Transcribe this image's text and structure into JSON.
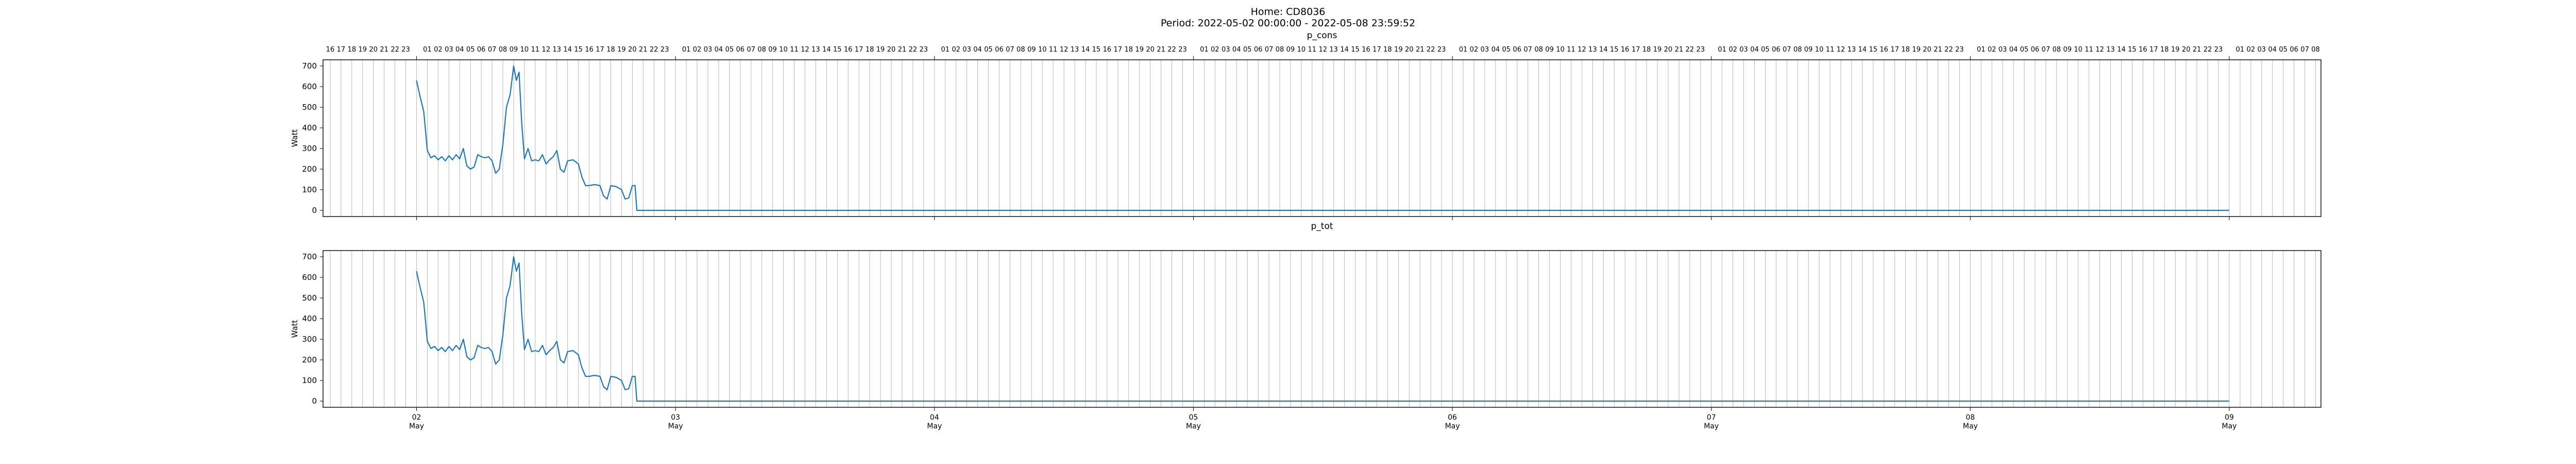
{
  "figure": {
    "title_line1": "Home: CD8036",
    "title_line2": "Period: 2022-05-02 00:00:00 - 2022-05-08 23:59:52"
  },
  "chart_data": [
    {
      "type": "line",
      "title": "p_cons",
      "xlabel": "",
      "ylabel": "Watt",
      "xlim": [
        "2022-05-01 15:20",
        "2022-05-09 08:30"
      ],
      "ylim": [
        -30,
        730
      ],
      "yticks": [
        0,
        100,
        200,
        300,
        400,
        500,
        600,
        700
      ],
      "grid": "vertical hourly lines",
      "x_major_ticks": [
        {
          "date": "2022-05-02 00:00",
          "day": "02",
          "month": "May"
        },
        {
          "date": "2022-05-03 00:00",
          "day": "03",
          "month": "May"
        },
        {
          "date": "2022-05-04 00:00",
          "day": "04",
          "month": "May"
        },
        {
          "date": "2022-05-05 00:00",
          "day": "05",
          "month": "May"
        },
        {
          "date": "2022-05-06 00:00",
          "day": "06",
          "month": "May"
        },
        {
          "date": "2022-05-07 00:00",
          "day": "07",
          "month": "May"
        },
        {
          "date": "2022-05-08 00:00",
          "day": "08",
          "month": "May"
        },
        {
          "date": "2022-05-09 00:00",
          "day": "09",
          "month": "May"
        }
      ],
      "top_hour_labels": "hours 16 to 23 on 2022-05-01, 01 to 23 each day 2022-05-02 to 2022-05-08, 01 to 08 on 2022-05-09",
      "series": [
        {
          "color": "#1f77b4",
          "points": [
            [
              "2022-05-02 00:00",
              630
            ],
            [
              "2022-05-02 00:20",
              550
            ],
            [
              "2022-05-02 00:40",
              480
            ],
            [
              "2022-05-02 01:00",
              290
            ],
            [
              "2022-05-02 01:20",
              255
            ],
            [
              "2022-05-02 01:40",
              265
            ],
            [
              "2022-05-02 02:00",
              245
            ],
            [
              "2022-05-02 02:20",
              260
            ],
            [
              "2022-05-02 02:40",
              240
            ],
            [
              "2022-05-02 03:00",
              265
            ],
            [
              "2022-05-02 03:20",
              245
            ],
            [
              "2022-05-02 03:40",
              270
            ],
            [
              "2022-05-02 04:00",
              250
            ],
            [
              "2022-05-02 04:20",
              300
            ],
            [
              "2022-05-02 04:40",
              215
            ],
            [
              "2022-05-02 05:00",
              200
            ],
            [
              "2022-05-02 05:20",
              210
            ],
            [
              "2022-05-02 05:40",
              270
            ],
            [
              "2022-05-02 06:00",
              260
            ],
            [
              "2022-05-02 06:20",
              255
            ],
            [
              "2022-05-02 06:40",
              260
            ],
            [
              "2022-05-02 07:00",
              240
            ],
            [
              "2022-05-02 07:20",
              180
            ],
            [
              "2022-05-02 07:40",
              200
            ],
            [
              "2022-05-02 08:00",
              320
            ],
            [
              "2022-05-02 08:20",
              500
            ],
            [
              "2022-05-02 08:40",
              560
            ],
            [
              "2022-05-02 09:00",
              700
            ],
            [
              "2022-05-02 09:15",
              630
            ],
            [
              "2022-05-02 09:30",
              670
            ],
            [
              "2022-05-02 09:45",
              420
            ],
            [
              "2022-05-02 10:00",
              250
            ],
            [
              "2022-05-02 10:20",
              300
            ],
            [
              "2022-05-02 10:40",
              240
            ],
            [
              "2022-05-02 11:00",
              245
            ],
            [
              "2022-05-02 11:20",
              240
            ],
            [
              "2022-05-02 11:40",
              270
            ],
            [
              "2022-05-02 12:00",
              225
            ],
            [
              "2022-05-02 12:20",
              245
            ],
            [
              "2022-05-02 12:40",
              260
            ],
            [
              "2022-05-02 13:00",
              290
            ],
            [
              "2022-05-02 13:20",
              200
            ],
            [
              "2022-05-02 13:40",
              185
            ],
            [
              "2022-05-02 14:00",
              240
            ],
            [
              "2022-05-02 14:30",
              245
            ],
            [
              "2022-05-02 15:00",
              225
            ],
            [
              "2022-05-02 15:20",
              160
            ],
            [
              "2022-05-02 15:40",
              120
            ],
            [
              "2022-05-02 16:00",
              120
            ],
            [
              "2022-05-02 16:30",
              125
            ],
            [
              "2022-05-02 17:00",
              120
            ],
            [
              "2022-05-02 17:20",
              70
            ],
            [
              "2022-05-02 17:40",
              55
            ],
            [
              "2022-05-02 18:00",
              120
            ],
            [
              "2022-05-02 18:30",
              115
            ],
            [
              "2022-05-02 19:00",
              100
            ],
            [
              "2022-05-02 19:20",
              55
            ],
            [
              "2022-05-02 19:40",
              60
            ],
            [
              "2022-05-02 20:00",
              120
            ],
            [
              "2022-05-02 20:15",
              120
            ],
            [
              "2022-05-02 20:25",
              0
            ],
            [
              "2022-05-08 23:59",
              0
            ]
          ]
        }
      ]
    },
    {
      "type": "line",
      "title": "p_tot",
      "xlabel": "",
      "ylabel": "Watt",
      "xlim": [
        "2022-05-01 15:20",
        "2022-05-09 08:30"
      ],
      "ylim": [
        -30,
        730
      ],
      "yticks": [
        0,
        100,
        200,
        300,
        400,
        500,
        600,
        700
      ],
      "grid": "vertical hourly lines",
      "x_major_ticks": [
        {
          "date": "2022-05-02 00:00",
          "day": "02",
          "month": "May"
        },
        {
          "date": "2022-05-03 00:00",
          "day": "03",
          "month": "May"
        },
        {
          "date": "2022-05-04 00:00",
          "day": "04",
          "month": "May"
        },
        {
          "date": "2022-05-05 00:00",
          "day": "05",
          "month": "May"
        },
        {
          "date": "2022-05-06 00:00",
          "day": "06",
          "month": "May"
        },
        {
          "date": "2022-05-07 00:00",
          "day": "07",
          "month": "May"
        },
        {
          "date": "2022-05-08 00:00",
          "day": "08",
          "month": "May"
        },
        {
          "date": "2022-05-09 00:00",
          "day": "09",
          "month": "May"
        }
      ],
      "series": [
        {
          "color": "#1f77b4",
          "points": [
            [
              "2022-05-02 00:00",
              630
            ],
            [
              "2022-05-02 00:20",
              550
            ],
            [
              "2022-05-02 00:40",
              480
            ],
            [
              "2022-05-02 01:00",
              290
            ],
            [
              "2022-05-02 01:20",
              255
            ],
            [
              "2022-05-02 01:40",
              265
            ],
            [
              "2022-05-02 02:00",
              245
            ],
            [
              "2022-05-02 02:20",
              260
            ],
            [
              "2022-05-02 02:40",
              240
            ],
            [
              "2022-05-02 03:00",
              265
            ],
            [
              "2022-05-02 03:20",
              245
            ],
            [
              "2022-05-02 03:40",
              270
            ],
            [
              "2022-05-02 04:00",
              250
            ],
            [
              "2022-05-02 04:20",
              300
            ],
            [
              "2022-05-02 04:40",
              215
            ],
            [
              "2022-05-02 05:00",
              200
            ],
            [
              "2022-05-02 05:20",
              210
            ],
            [
              "2022-05-02 05:40",
              270
            ],
            [
              "2022-05-02 06:00",
              260
            ],
            [
              "2022-05-02 06:20",
              255
            ],
            [
              "2022-05-02 06:40",
              260
            ],
            [
              "2022-05-02 07:00",
              240
            ],
            [
              "2022-05-02 07:20",
              180
            ],
            [
              "2022-05-02 07:40",
              200
            ],
            [
              "2022-05-02 08:00",
              320
            ],
            [
              "2022-05-02 08:20",
              500
            ],
            [
              "2022-05-02 08:40",
              560
            ],
            [
              "2022-05-02 09:00",
              700
            ],
            [
              "2022-05-02 09:15",
              630
            ],
            [
              "2022-05-02 09:30",
              670
            ],
            [
              "2022-05-02 09:45",
              420
            ],
            [
              "2022-05-02 10:00",
              250
            ],
            [
              "2022-05-02 10:20",
              300
            ],
            [
              "2022-05-02 10:40",
              240
            ],
            [
              "2022-05-02 11:00",
              245
            ],
            [
              "2022-05-02 11:20",
              240
            ],
            [
              "2022-05-02 11:40",
              270
            ],
            [
              "2022-05-02 12:00",
              225
            ],
            [
              "2022-05-02 12:20",
              245
            ],
            [
              "2022-05-02 12:40",
              260
            ],
            [
              "2022-05-02 13:00",
              290
            ],
            [
              "2022-05-02 13:20",
              200
            ],
            [
              "2022-05-02 13:40",
              185
            ],
            [
              "2022-05-02 14:00",
              240
            ],
            [
              "2022-05-02 14:30",
              245
            ],
            [
              "2022-05-02 15:00",
              225
            ],
            [
              "2022-05-02 15:20",
              160
            ],
            [
              "2022-05-02 15:40",
              120
            ],
            [
              "2022-05-02 16:00",
              120
            ],
            [
              "2022-05-02 16:30",
              125
            ],
            [
              "2022-05-02 17:00",
              120
            ],
            [
              "2022-05-02 17:20",
              70
            ],
            [
              "2022-05-02 17:40",
              55
            ],
            [
              "2022-05-02 18:00",
              120
            ],
            [
              "2022-05-02 18:30",
              115
            ],
            [
              "2022-05-02 19:00",
              100
            ],
            [
              "2022-05-02 19:20",
              55
            ],
            [
              "2022-05-02 19:40",
              60
            ],
            [
              "2022-05-02 20:00",
              120
            ],
            [
              "2022-05-02 20:15",
              120
            ],
            [
              "2022-05-02 20:25",
              0
            ],
            [
              "2022-05-08 23:59",
              0
            ]
          ]
        }
      ]
    }
  ]
}
